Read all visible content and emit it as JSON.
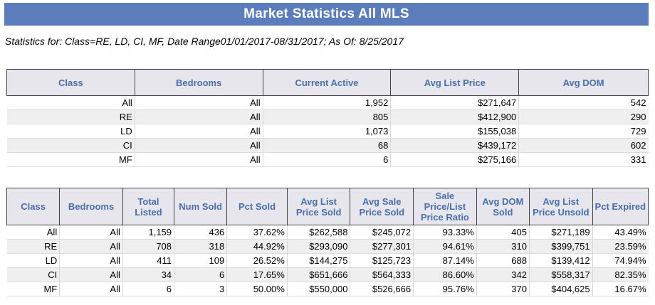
{
  "title": "Market Statistics All MLS",
  "subtitle": "Statistics for: Class=RE, LD, CI, MF, Date Range01/01/2017-08/31/2017; As Of: 8/25/2017",
  "table1": {
    "headers": [
      "Class",
      "Bedrooms",
      "Current Active",
      "Avg List Price",
      "Avg DOM"
    ],
    "rows": [
      [
        "All",
        "All",
        "1,952",
        "$271,647",
        "542"
      ],
      [
        "RE",
        "All",
        "805",
        "$412,900",
        "290"
      ],
      [
        "LD",
        "All",
        "1,073",
        "$155,038",
        "729"
      ],
      [
        "CI",
        "All",
        "68",
        "$439,172",
        "602"
      ],
      [
        "MF",
        "All",
        "6",
        "$275,166",
        "331"
      ]
    ]
  },
  "table2": {
    "headers": [
      "Class",
      "Bedrooms",
      "Total Listed",
      "Num Sold",
      "Pct Sold",
      "Avg List Price Sold",
      "Avg Sale Price Sold",
      "Sale Price/List Price Ratio",
      "Avg DOM Sold",
      "Avg List Price Unsold",
      "Pct Expired"
    ],
    "rows": [
      [
        "All",
        "All",
        "1,159",
        "436",
        "37.62%",
        "$262,588",
        "$245,072",
        "93.33%",
        "405",
        "$271,189",
        "43.49%"
      ],
      [
        "RE",
        "All",
        "708",
        "318",
        "44.92%",
        "$293,090",
        "$277,301",
        "94.61%",
        "310",
        "$399,751",
        "23.59%"
      ],
      [
        "LD",
        "All",
        "411",
        "109",
        "26.52%",
        "$144,275",
        "$125,723",
        "87.14%",
        "688",
        "$139,412",
        "74.94%"
      ],
      [
        "CI",
        "All",
        "34",
        "6",
        "17.65%",
        "$651,666",
        "$564,333",
        "86.60%",
        "342",
        "$558,317",
        "82.35%"
      ],
      [
        "MF",
        "All",
        "6",
        "3",
        "50.00%",
        "$550,000",
        "$526,666",
        "95.76%",
        "370",
        "$404,625",
        "16.67%"
      ]
    ]
  }
}
